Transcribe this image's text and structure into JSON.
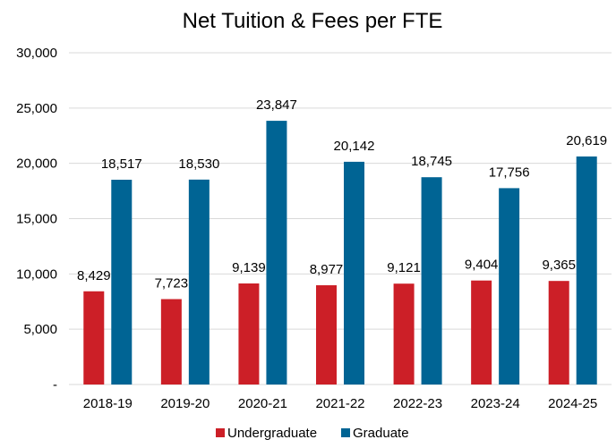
{
  "chart_data": {
    "type": "bar",
    "title": "Net Tuition & Fees per FTE",
    "xlabel": "",
    "ylabel": "",
    "categories": [
      "2018-19",
      "2019-20",
      "2020-21",
      "2021-22",
      "2022-23",
      "2023-24",
      "2024-25"
    ],
    "series": [
      {
        "name": "Undergraduate",
        "color": "#cc1f27",
        "values": [
          8429,
          7723,
          9139,
          8977,
          9121,
          9404,
          9365
        ],
        "labels": [
          "8,429",
          "7,723",
          "9,139",
          "8,977",
          "9,121",
          "9,404",
          "9,365"
        ]
      },
      {
        "name": "Graduate",
        "color": "#006494",
        "values": [
          18517,
          18530,
          23847,
          20142,
          18745,
          17756,
          20619
        ],
        "labels": [
          "18,517",
          "18,530",
          "23,847",
          "20,142",
          "18,745",
          "17,756",
          "20,619"
        ]
      }
    ],
    "ylim": [
      0,
      30000
    ],
    "yticks": [
      0,
      5000,
      10000,
      15000,
      20000,
      25000,
      30000
    ],
    "ytick_labels": [
      "-",
      "5,000",
      "10,000",
      "15,000",
      "20,000",
      "25,000",
      "30,000"
    ],
    "grid": true,
    "legend_position": "bottom"
  }
}
